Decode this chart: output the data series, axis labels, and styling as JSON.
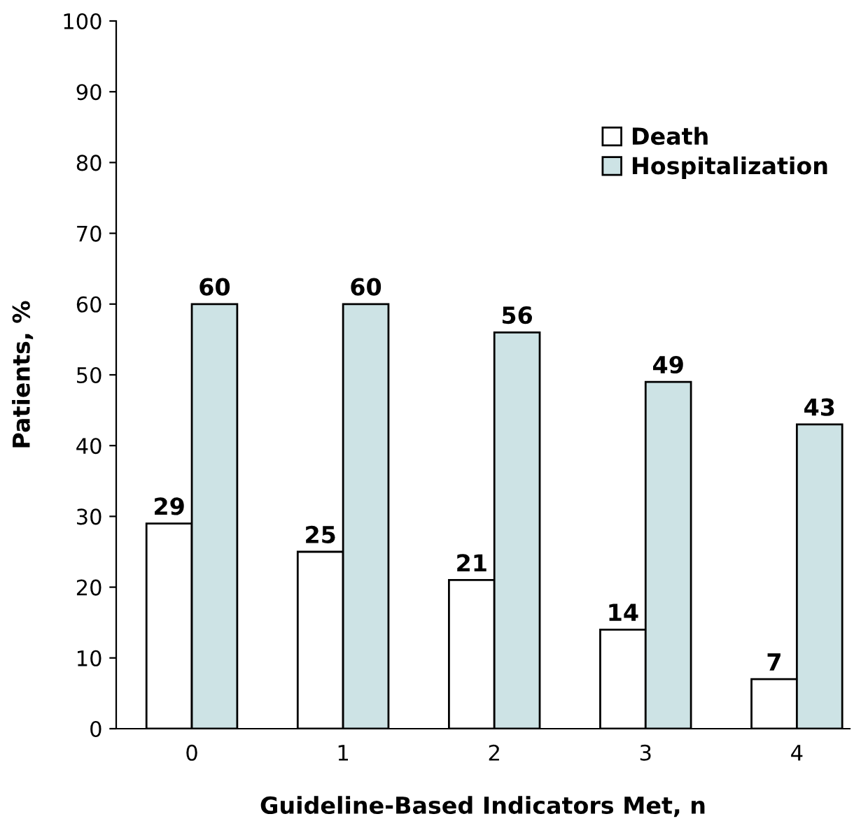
{
  "chart_data": {
    "type": "bar",
    "xlabel": "Guideline-Based Indicators Met, n",
    "ylabel": "Patients, %",
    "categories": [
      "0",
      "1",
      "2",
      "3",
      "4"
    ],
    "series": [
      {
        "name": "Death",
        "color": "#ffffff",
        "values": [
          29,
          25,
          21,
          14,
          7
        ]
      },
      {
        "name": "Hospitalization",
        "color": "#cde3e5",
        "values": [
          60,
          60,
          56,
          49,
          43
        ]
      }
    ],
    "ylim": [
      0,
      100
    ],
    "yticks": [
      0,
      10,
      20,
      30,
      40,
      50,
      60,
      70,
      80,
      90,
      100
    ],
    "data_labels": true,
    "legend": "top right",
    "grid": false
  }
}
